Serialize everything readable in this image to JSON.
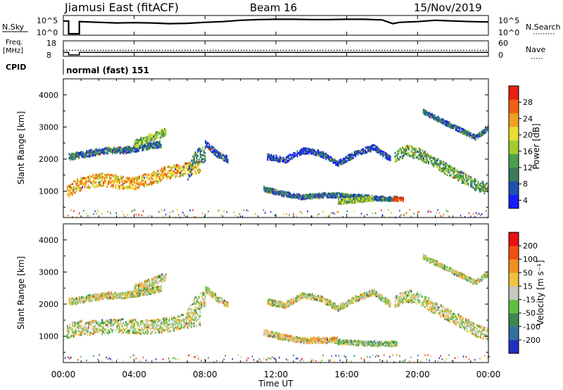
{
  "header": {
    "title": "Jiamusi East (fitACF)",
    "beam": "Beam 16",
    "date": "15/Nov/2019"
  },
  "nsky_panel": {
    "label": "N.Sky",
    "right_label": "N.Search",
    "ticks": [
      "10^5",
      "10^0"
    ],
    "right_ticks": [
      "10^5",
      "10^0"
    ]
  },
  "freq_panel": {
    "label_line1": "Freq.",
    "label_line2": "[MHz]",
    "ticks": [
      "18",
      "8"
    ],
    "right_label": "Nave",
    "right_ticks": [
      "60",
      "0"
    ]
  },
  "cpid": {
    "label": "CPID",
    "value": "normal (fast) 151"
  },
  "power_panel": {
    "ylabel": "Slant Range [km]",
    "yticks": [
      "4000",
      "3000",
      "2000",
      "1000"
    ],
    "colorbar_label": "Power [dB]",
    "colorbar_ticks": [
      "28",
      "24",
      "20",
      "16",
      "12",
      "8",
      "4"
    ],
    "colors": [
      "#1a1aff",
      "#2050b0",
      "#3a7a5a",
      "#4aa04a",
      "#a0cc30",
      "#e8e030",
      "#f0a020",
      "#f06010",
      "#e82010"
    ]
  },
  "velocity_panel": {
    "ylabel": "Slant Range [km]",
    "yticks": [
      "4000",
      "3000",
      "2000",
      "1000"
    ],
    "colorbar_label": "Velocity [m s⁻¹]",
    "colorbar_ticks": [
      "200",
      "100",
      "50",
      "15",
      "-15",
      "-50",
      "-100",
      "-200"
    ],
    "colors": [
      "#2030c0",
      "#3070a0",
      "#3a8a50",
      "#60c040",
      "#c8c8c0",
      "#f0c040",
      "#f09020",
      "#f05010",
      "#e81010"
    ]
  },
  "xaxis": {
    "label": "Time UT",
    "ticks": [
      "00:00",
      "04:00",
      "08:00",
      "12:00",
      "16:00",
      "20:00",
      "00:00"
    ]
  },
  "chart_data": {
    "type": "heatmap",
    "title": "Jiamusi East (fitACF)",
    "xlabel": "Time UT",
    "ylabel": "Slant Range [km]",
    "xlim": [
      0,
      24
    ],
    "ylim": [
      180,
      4500
    ],
    "series": [
      {
        "name": "Power [dB]",
        "bands": [
          {
            "t0": 0.2,
            "t1": 7.7,
            "r": [
              1000,
              1200,
              1300,
              1350,
              1400,
              1350,
              1300,
              1250,
              1300,
              1400,
              1450,
              1600,
              1650,
              1700,
              1750,
              1800
            ],
            "w": 400,
            "v": 22
          },
          {
            "t0": 0.3,
            "t1": 5.5,
            "r": [
              2100,
              2200,
              2300,
              2300,
              2400,
              2500
            ],
            "w": 200,
            "v": 10
          },
          {
            "t0": 4.0,
            "t1": 5.8,
            "r": [
              2500,
              2700,
              2900
            ],
            "w": 250,
            "v": 16
          },
          {
            "t0": 7.0,
            "t1": 8.0,
            "r": [
              1600,
              2100,
              2200
            ],
            "w": 500,
            "v": 12
          },
          {
            "t0": 8.0,
            "t1": 9.3,
            "r": [
              2500,
              2200,
              2000
            ],
            "w": 200,
            "v": 8
          },
          {
            "t0": 11.3,
            "t1": 18.8,
            "r": [
              1100,
              950,
              850,
              900,
              900,
              850,
              800,
              800
            ],
            "w": 150,
            "v": 10
          },
          {
            "t0": 11.5,
            "t1": 18.5,
            "r": [
              2100,
              2000,
              2300,
              2200,
              1900,
              2200,
              2400,
              2000
            ],
            "w": 180,
            "v": 8
          },
          {
            "t0": 15.5,
            "t1": 17.5,
            "r": [
              700,
              750,
              800
            ],
            "w": 150,
            "v": 16
          },
          {
            "t0": 18.6,
            "t1": 19.2,
            "r": [
              780
            ],
            "w": 120,
            "v": 27
          },
          {
            "t0": 18.7,
            "t1": 24.0,
            "r": [
              2100,
              2300,
              2200,
              2000,
              1800,
              1600,
              1400,
              1200,
              1100
            ],
            "w": 350,
            "v": 14
          },
          {
            "t0": 20.3,
            "t1": 24.0,
            "r": [
              3500,
              3300,
              3100,
              2900,
              2700,
              3000
            ],
            "w": 150,
            "v": 10
          }
        ]
      },
      {
        "name": "Velocity [m s⁻¹]",
        "bands": [
          {
            "t0": 0.2,
            "t1": 7.7,
            "r": [
              1200,
              1300,
              1300,
              1350,
              1350,
              1300,
              1350,
              1400,
              1500,
              1600
            ],
            "w": 450,
            "v": 0
          },
          {
            "t0": 0.3,
            "t1": 5.5,
            "r": [
              2100,
              2200,
              2300,
              2300,
              2400,
              2500
            ],
            "w": 200,
            "v": 0
          },
          {
            "t0": 4.0,
            "t1": 5.8,
            "r": [
              2500,
              2700,
              2900
            ],
            "w": 250,
            "v": 0
          },
          {
            "t0": 7.0,
            "t1": 8.0,
            "r": [
              1600,
              2100,
              2200
            ],
            "w": 500,
            "v": 0
          },
          {
            "t0": 8.0,
            "t1": 9.3,
            "r": [
              2500,
              2200,
              2000
            ],
            "w": 200,
            "v": 0
          },
          {
            "t0": 11.3,
            "t1": 15.5,
            "r": [
              1150,
              1000,
              900,
              900,
              900
            ],
            "w": 180,
            "v": 40
          },
          {
            "t0": 15.5,
            "t1": 18.8,
            "r": [
              850,
              800,
              800
            ],
            "w": 150,
            "v": -40
          },
          {
            "t0": 11.5,
            "t1": 18.5,
            "r": [
              2100,
              2000,
              2300,
              2200,
              1900,
              2200,
              2400,
              2000
            ],
            "w": 180,
            "v": 0
          },
          {
            "t0": 18.7,
            "t1": 24.0,
            "r": [
              2100,
              2300,
              2200,
              2000,
              1800,
              1600,
              1400,
              1200,
              1100
            ],
            "w": 380,
            "v": 0
          },
          {
            "t0": 20.3,
            "t1": 24.0,
            "r": [
              3500,
              3300,
              3100,
              2900,
              2700,
              3000
            ],
            "w": 150,
            "v": 0
          }
        ]
      }
    ],
    "nsky_trace": [
      [
        0,
        3.8
      ],
      [
        0.3,
        3.8
      ],
      [
        0.3,
        0
      ],
      [
        0.7,
        0
      ],
      [
        0.7,
        0
      ],
      [
        0.9,
        0
      ],
      [
        0.9,
        3.6
      ],
      [
        2,
        3.4
      ],
      [
        3,
        3.2
      ],
      [
        4,
        3.3
      ],
      [
        5,
        3.2
      ],
      [
        6,
        3.0
      ],
      [
        7,
        3.1
      ],
      [
        8,
        3.4
      ],
      [
        9,
        3.6
      ],
      [
        10,
        4.0
      ],
      [
        11,
        4.2
      ],
      [
        12,
        4.3
      ],
      [
        13,
        4.3
      ],
      [
        14,
        4.2
      ],
      [
        15,
        4.2
      ],
      [
        16,
        4.3
      ],
      [
        17,
        4.3
      ],
      [
        18,
        4.1
      ],
      [
        18.6,
        3.0
      ],
      [
        19,
        3.4
      ],
      [
        20,
        3.6
      ],
      [
        21,
        4.0
      ],
      [
        22,
        3.8
      ],
      [
        23,
        3.6
      ],
      [
        24,
        3.5
      ]
    ],
    "freq_mhz": [
      [
        0,
        10.0
      ],
      [
        0.3,
        10.0
      ],
      [
        0.3,
        8.0
      ],
      [
        0.9,
        8.0
      ],
      [
        0.9,
        10.0
      ],
      [
        24,
        10.0
      ]
    ],
    "nave_dotted": 22,
    "power_scale": [
      4,
      30
    ],
    "velocity_scale": [
      -250,
      250
    ]
  }
}
